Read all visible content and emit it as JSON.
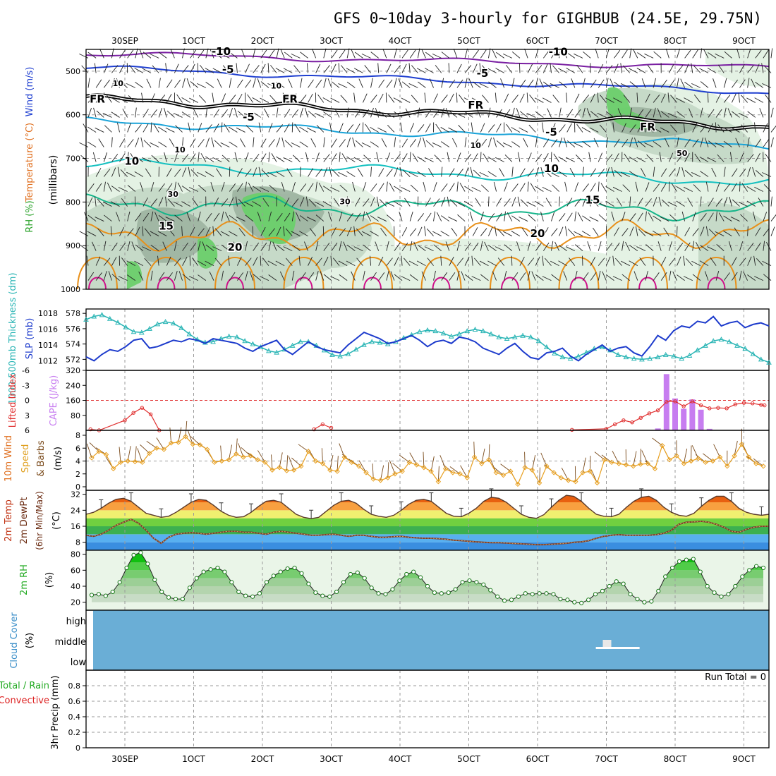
{
  "title": "GFS 0~10day 3-hourly for GIGHBUB (24.5E, 29.75N)",
  "run_total_label": "Run Total = 0",
  "colors": {
    "grid": "#9a9a9a",
    "wind_purple": "#7a1fa2",
    "wind_blue": "#1f3fd0",
    "fr_black": "#000000",
    "cyan_temp": "#1aa3d8",
    "teal_temp": "#14c0c0",
    "green_temp": "#15b58a",
    "orange_temp": "#e8901a",
    "magenta_temp": "#d0108a",
    "rh_light": "#e3f1e3",
    "rh_mid": "#c4d8c6",
    "rh_dark": "#9fb5a2",
    "rh_green": "#6ccf6c",
    "slp": "#1d3bcc",
    "thickness": "#2ab5b5",
    "lifted_index": "#e03030",
    "cape": "#c77df0",
    "wind_speed": "#e8a020",
    "barbs": "#7a4a1a",
    "cloud": "#6aaed6",
    "precip_total": "#22aa22",
    "precip_conv": "#dd2222"
  },
  "chart_data": [
    {
      "id": "upper_air",
      "type": "contour",
      "xlabel_top": [
        "30SEP",
        "1OCT",
        "2OCT",
        "3OCT",
        "4OCT",
        "5OCT",
        "6OCT",
        "7OCT",
        "8OCT",
        "9OCT"
      ],
      "ylabel_parts": [
        "RH (%)",
        "Temperature (°C)",
        "Wind (m/s)"
      ],
      "yunit": "(millibars)",
      "yticks": [
        500,
        600,
        700,
        800,
        900,
        1000
      ],
      "ylim": [
        450,
        1000
      ],
      "contour_labels": [
        {
          "text": "-10",
          "line": "wind_purple",
          "day": 1.4,
          "p": 455
        },
        {
          "text": "-10",
          "line": "wind_purple",
          "day": 6.3,
          "p": 456
        },
        {
          "text": "-5",
          "line": "wind_blue",
          "day": 1.5,
          "p": 496
        },
        {
          "text": "-5",
          "line": "wind_blue",
          "day": 5.2,
          "p": 505
        },
        {
          "text": "FR",
          "line": "fr_black",
          "day": -0.4,
          "p": 564
        },
        {
          "text": "FR",
          "line": "fr_black",
          "day": 2.4,
          "p": 564
        },
        {
          "text": "FR",
          "line": "fr_black",
          "day": 5.1,
          "p": 578
        },
        {
          "text": "FR",
          "line": "fr_black",
          "day": 7.6,
          "p": 628
        },
        {
          "text": "-5",
          "line": "cyan_temp",
          "day": 1.8,
          "p": 605
        },
        {
          "text": "-5",
          "line": "cyan_temp",
          "day": 6.2,
          "p": 640
        },
        {
          "text": "10",
          "line": "teal_temp",
          "day": 0.1,
          "p": 706
        },
        {
          "text": "10",
          "line": "teal_temp",
          "day": 6.2,
          "p": 723
        },
        {
          "text": "15",
          "line": "green_temp",
          "day": 0.6,
          "p": 855
        },
        {
          "text": "15",
          "line": "green_temp",
          "day": 6.8,
          "p": 795
        },
        {
          "text": "20",
          "line": "orange_temp",
          "day": 1.6,
          "p": 904
        },
        {
          "text": "20",
          "line": "orange_temp",
          "day": 6.0,
          "p": 872
        },
        {
          "text": "10",
          "line": "rh",
          "day": -0.1,
          "p": 526
        },
        {
          "text": "10",
          "line": "rh",
          "day": 2.2,
          "p": 532
        },
        {
          "text": "10",
          "line": "rh",
          "day": 0.8,
          "p": 678
        },
        {
          "text": "10",
          "line": "rh",
          "day": 5.1,
          "p": 668
        },
        {
          "text": "30",
          "line": "rh",
          "day": 0.7,
          "p": 780
        },
        {
          "text": "30",
          "line": "rh",
          "day": 3.2,
          "p": 797
        },
        {
          "text": "30",
          "line": "rh",
          "day": 3.2,
          "p": 797
        },
        {
          "text": "50",
          "line": "rh",
          "day": 8.1,
          "p": 686
        }
      ]
    },
    {
      "id": "slp_thickness",
      "type": "line",
      "ylabel_left": "1000-500mb Thickness (dm)",
      "ylabel_right": "SLP (mb)",
      "yticks_thickness": [
        572,
        574,
        576,
        578
      ],
      "yticks_slp": [
        1012,
        1014,
        1016,
        1018
      ],
      "series": [
        {
          "name": "SLP (mb)",
          "color": "slp",
          "values": [
            1012.5,
            1012.0,
            1012.8,
            1013.4,
            1013.2,
            1013.8,
            1014.6,
            1014.8,
            1013.6,
            1013.8,
            1014.2,
            1014.6,
            1014.4,
            1014.8,
            1014.6,
            1014.2,
            1014.8,
            1014.6,
            1014.4,
            1014.2,
            1013.6,
            1013.2,
            1013.8,
            1014.2,
            1014.6,
            1013.4,
            1012.8,
            1013.6,
            1014.4,
            1013.8,
            1013.4,
            1013.2,
            1013.0,
            1014.0,
            1014.8,
            1015.6,
            1015.2,
            1014.8,
            1014.2,
            1014.4,
            1014.8,
            1015.2,
            1014.6,
            1013.8,
            1014.4,
            1014.6,
            1014.2,
            1015.0,
            1014.8,
            1014.4,
            1013.6,
            1013.2,
            1012.8,
            1013.6,
            1014.2,
            1013.2,
            1012.4,
            1012.2,
            1013.0,
            1013.2,
            1013.6,
            1012.6,
            1012.0,
            1012.8,
            1013.4,
            1014.0,
            1013.2,
            1013.6,
            1013.8,
            1013.0,
            1012.6,
            1013.8,
            1015.2,
            1014.6,
            1015.8,
            1016.4,
            1016.2,
            1017.0,
            1016.8,
            1017.6,
            1016.4,
            1016.8,
            1017.0,
            1016.2,
            1016.6,
            1016.8,
            1016.4
          ]
        },
        {
          "name": "1000-500mb Thickness (dm)",
          "color": "thickness",
          "values": [
            577.2,
            577.6,
            577.8,
            577.3,
            576.8,
            576.2,
            575.6,
            575.5,
            576.0,
            576.6,
            576.9,
            576.7,
            576.1,
            575.3,
            574.6,
            574.2,
            574.3,
            574.7,
            575.0,
            574.9,
            574.4,
            574.0,
            573.6,
            573.1,
            572.9,
            573.3,
            573.8,
            574.3,
            574.3,
            573.8,
            573.2,
            572.6,
            572.4,
            572.7,
            573.3,
            573.9,
            574.3,
            574.2,
            574.0,
            574.3,
            574.8,
            575.2,
            575.6,
            575.8,
            575.7,
            575.4,
            575.0,
            575.3,
            575.7,
            575.9,
            575.7,
            575.3,
            574.9,
            574.7,
            574.9,
            575.1,
            574.9,
            574.4,
            573.6,
            572.8,
            572.3,
            572.1,
            572.4,
            572.9,
            573.4,
            573.6,
            573.2,
            572.6,
            572.3,
            572.1,
            572.0,
            572.1,
            572.3,
            572.6,
            572.4,
            572.1,
            572.5,
            573.2,
            573.8,
            574.4,
            574.6,
            574.3,
            573.8,
            573.4,
            572.7,
            572.0,
            571.6
          ]
        }
      ]
    },
    {
      "id": "stability",
      "type": "bar+line",
      "ylabel_left": "Lifted Index",
      "ylabel_right": "CAPE (J/kg)",
      "yticks_li": [
        "-6",
        "-3",
        "0",
        "3",
        "6"
      ],
      "yticks_cape": [
        80,
        160,
        240,
        320
      ],
      "ylim_cape": [
        0,
        320
      ],
      "cape_bars": [
        {
          "day": 7.75,
          "value": 10
        },
        {
          "day": 7.875,
          "value": 300
        },
        {
          "day": 8.0,
          "value": 170
        },
        {
          "day": 8.125,
          "value": 115
        },
        {
          "day": 8.25,
          "value": 165
        },
        {
          "day": 8.375,
          "value": 110
        },
        {
          "day": 8.5,
          "value": 8
        }
      ],
      "li_points": [
        {
          "day": -0.5,
          "value": 5.8
        },
        {
          "day": -0.375,
          "value": 6.0
        },
        {
          "day": 0.0,
          "value": 4.0
        },
        {
          "day": 0.125,
          "value": 2.5
        },
        {
          "day": 0.25,
          "value": 1.5
        },
        {
          "day": 0.375,
          "value": 2.8
        },
        {
          "day": 0.5,
          "value": 6.0
        },
        {
          "day": 2.75,
          "value": 5.8
        },
        {
          "day": 2.875,
          "value": 4.8
        },
        {
          "day": 3.0,
          "value": 5.5
        },
        {
          "day": 6.5,
          "value": 5.9
        },
        {
          "day": 7.0,
          "value": 5.7
        },
        {
          "day": 7.125,
          "value": 4.8
        },
        {
          "day": 7.25,
          "value": 4.0
        },
        {
          "day": 7.375,
          "value": 4.4
        },
        {
          "day": 7.5,
          "value": 3.5
        },
        {
          "day": 7.625,
          "value": 2.6
        },
        {
          "day": 7.75,
          "value": 2.0
        },
        {
          "day": 7.875,
          "value": 0.3
        },
        {
          "day": 8.0,
          "value": 0.2
        },
        {
          "day": 8.125,
          "value": 1.2
        },
        {
          "day": 8.25,
          "value": 0.2
        },
        {
          "day": 8.375,
          "value": 1.0
        },
        {
          "day": 8.5,
          "value": 1.6
        },
        {
          "day": 8.625,
          "value": 1.5
        },
        {
          "day": 8.75,
          "value": 1.6
        },
        {
          "day": 8.875,
          "value": 0.8
        },
        {
          "day": 9.0,
          "value": 0.5
        },
        {
          "day": 9.125,
          "value": 0.6
        },
        {
          "day": 9.25,
          "value": 0.9
        },
        {
          "day": 9.3,
          "value": 1.0
        }
      ]
    },
    {
      "id": "wind10m",
      "type": "line",
      "ylabel": "10m Wind Speed & Barbs (m/s)",
      "yticks": [
        0,
        2,
        4,
        6,
        8
      ],
      "ylim": [
        0,
        8
      ],
      "series": [
        {
          "name": "10m Wind Speed",
          "color": "wind_speed",
          "values": [
            4.5,
            5.5,
            5.0,
            2.8,
            3.8,
            4.0,
            3.9,
            3.8,
            5.2,
            6.0,
            5.8,
            6.8,
            6.9,
            7.8,
            6.6,
            6.5,
            5.8,
            3.8,
            4.0,
            4.2,
            5.1,
            4.6,
            4.8,
            4.2,
            3.8,
            2.6,
            3.0,
            2.5,
            2.6,
            3.2,
            5.5,
            4.0,
            3.6,
            2.6,
            2.4,
            4.6,
            3.8,
            3.2,
            2.2,
            1.2,
            1.0,
            1.4,
            2.0,
            2.4,
            3.8,
            3.4,
            3.0,
            2.4,
            0.8,
            2.8,
            2.2,
            2.0,
            1.4,
            4.6,
            3.6,
            4.2,
            2.2,
            1.8,
            2.4,
            0.4,
            3.0,
            2.6,
            0.6,
            3.2,
            2.2,
            1.4,
            1.0,
            0.8,
            2.2,
            2.4,
            0.6,
            4.2,
            3.8,
            3.6,
            3.4,
            3.2,
            3.5,
            3.6,
            2.8,
            6.4,
            4.2,
            4.8,
            3.6,
            4.0,
            4.4,
            3.8,
            4.0,
            4.6,
            3.2,
            4.8,
            6.6,
            4.6,
            3.6,
            3.2
          ]
        }
      ]
    },
    {
      "id": "temp2m",
      "type": "area",
      "ylabel": "2m Temp / 2m DewPt (6hr Min/Max) (°C)",
      "yticks": [
        8,
        16,
        24,
        32
      ],
      "ylim": [
        4,
        34
      ],
      "series": [
        {
          "name": "2m Temp",
          "values": [
            22.0,
            23.0,
            25.0,
            27.5,
            29.5,
            30.0,
            28.5,
            25.5,
            22.5,
            21.5,
            20.5,
            21.0,
            23.0,
            25.5,
            28.0,
            29.5,
            29.0,
            26.5,
            23.5,
            21.5,
            20.5,
            20.8,
            23.0,
            26.0,
            28.5,
            29.0,
            28.0,
            25.0,
            22.0,
            20.5,
            19.8,
            20.5,
            23.5,
            26.5,
            28.5,
            29.0,
            27.5,
            24.5,
            22.0,
            21.0,
            20.5,
            21.5,
            24.0,
            27.0,
            29.0,
            29.5,
            28.5,
            25.5,
            22.5,
            21.0,
            20.8,
            22.5,
            25.0,
            28.5,
            30.5,
            30.0,
            28.0,
            25.0,
            22.0,
            20.5,
            20.0,
            21.8,
            25.5,
            29.0,
            31.5,
            31.0,
            28.5,
            25.0,
            22.0,
            21.0,
            20.8,
            22.0,
            25.5,
            28.5,
            30.5,
            31.0,
            29.0,
            25.5,
            23.0,
            21.5,
            21.0,
            22.5,
            26.0,
            29.0,
            31.0,
            31.0,
            28.5,
            25.0,
            23.0,
            22.0,
            21.5,
            22.0
          ]
        },
        {
          "name": "2m DewPt",
          "values": [
            11.5,
            11.0,
            12.0,
            14.0,
            16.5,
            18.0,
            19.5,
            17.5,
            14.0,
            10.0,
            7.5,
            10.5,
            12.0,
            12.5,
            12.8,
            12.5,
            12.0,
            12.5,
            13.0,
            13.5,
            13.5,
            13.0,
            13.0,
            12.5,
            12.0,
            13.0,
            13.5,
            13.0,
            12.5,
            12.0,
            11.5,
            11.5,
            11.8,
            12.0,
            11.5,
            11.0,
            11.5,
            11.5,
            11.0,
            10.5,
            10.5,
            10.8,
            11.0,
            10.5,
            10.2,
            10.0,
            10.0,
            9.8,
            9.5,
            9.0,
            8.8,
            8.5,
            8.2,
            8.0,
            7.8,
            7.8,
            7.6,
            7.4,
            7.2,
            7.0,
            6.8,
            6.8,
            7.0,
            7.2,
            7.5,
            8.0,
            8.2,
            8.8,
            10.0,
            11.0,
            11.5,
            11.8,
            11.5,
            11.5,
            11.5,
            11.5,
            11.8,
            12.5,
            14.0,
            17.0,
            18.0,
            18.2,
            18.5,
            18.0,
            17.0,
            15.5,
            13.5,
            13.0,
            14.5,
            15.5,
            16.0,
            16.0
          ]
        }
      ]
    },
    {
      "id": "rh2m",
      "type": "area",
      "ylabel": "2m RH (%)",
      "yticks": [
        20,
        40,
        60,
        80
      ],
      "ylim": [
        10,
        85
      ],
      "series": [
        {
          "name": "2m RH",
          "values": [
            29,
            30,
            28,
            33,
            45,
            63,
            79,
            82,
            68,
            48,
            33,
            26,
            24,
            24,
            38,
            50,
            58,
            61,
            63,
            58,
            45,
            33,
            28,
            27,
            31,
            45,
            53,
            58,
            62,
            63,
            56,
            43,
            32,
            28,
            27,
            33,
            45,
            55,
            57,
            50,
            38,
            31,
            30,
            36,
            47,
            55,
            58,
            51,
            40,
            32,
            31,
            32,
            36,
            45,
            47,
            45,
            42,
            35,
            27,
            22,
            23,
            27,
            31,
            30,
            31,
            31,
            30,
            24,
            23,
            20,
            19,
            23,
            30,
            34,
            40,
            46,
            43,
            30,
            24,
            20,
            21,
            34,
            52,
            63,
            71,
            73,
            74,
            58,
            40,
            32,
            27,
            30,
            40,
            52,
            60,
            65,
            63
          ]
        }
      ]
    },
    {
      "id": "cloud",
      "type": "heatmap",
      "ylabel": "Cloud Cover (%)",
      "yticks": [
        "high",
        "middle",
        "low"
      ]
    },
    {
      "id": "precip",
      "type": "bar",
      "ylabel_parts": [
        "Total / Rain",
        "Convective"
      ],
      "yunit": "3hr Precip (mm)",
      "yticks": [
        "0",
        "0.2",
        "0.4",
        "0.6",
        "0.8"
      ],
      "ylim": [
        0,
        1
      ],
      "xlabel_bottom": [
        "30SEP",
        "1OCT",
        "2OCT",
        "3OCT",
        "4OCT",
        "5OCT",
        "6OCT",
        "7OCT",
        "8OCT",
        "9OCT"
      ]
    }
  ]
}
